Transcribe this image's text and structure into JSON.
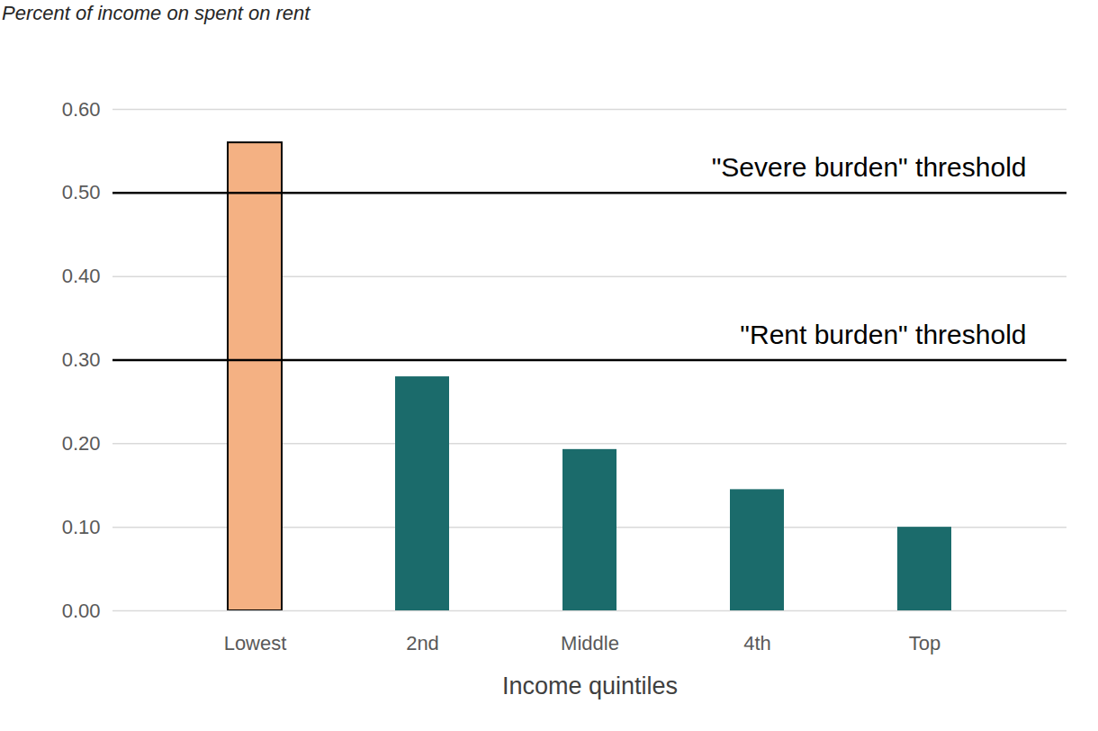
{
  "chart_data": {
    "type": "bar",
    "title": "Percent of income on spent on rent",
    "x_label": "Income quintiles",
    "categories": [
      "Lowest",
      "2nd",
      "Middle",
      "4th",
      "Top"
    ],
    "values": [
      0.56,
      0.28,
      0.193,
      0.145,
      0.1
    ],
    "colors": [
      "#f4b183",
      "#1b6b6b",
      "#1b6b6b",
      "#1b6b6b",
      "#1b6b6b"
    ],
    "ylim": [
      0,
      0.6
    ],
    "yticks": [
      {
        "value": 0,
        "label": "0.00"
      },
      {
        "value": 0.1,
        "label": "0.10"
      },
      {
        "value": 0.2,
        "label": "0.20"
      },
      {
        "value": 0.3,
        "label": "0.30"
      },
      {
        "value": 0.4,
        "label": "0.40"
      },
      {
        "value": 0.5,
        "label": "0.50"
      },
      {
        "value": 0.6,
        "label": "0.60"
      }
    ],
    "thresholds": [
      {
        "value": 0.5,
        "label": "\"Severe burden\" threshold"
      },
      {
        "value": 0.3,
        "label": "\"Rent burden\" threshold"
      }
    ],
    "grid": true
  }
}
